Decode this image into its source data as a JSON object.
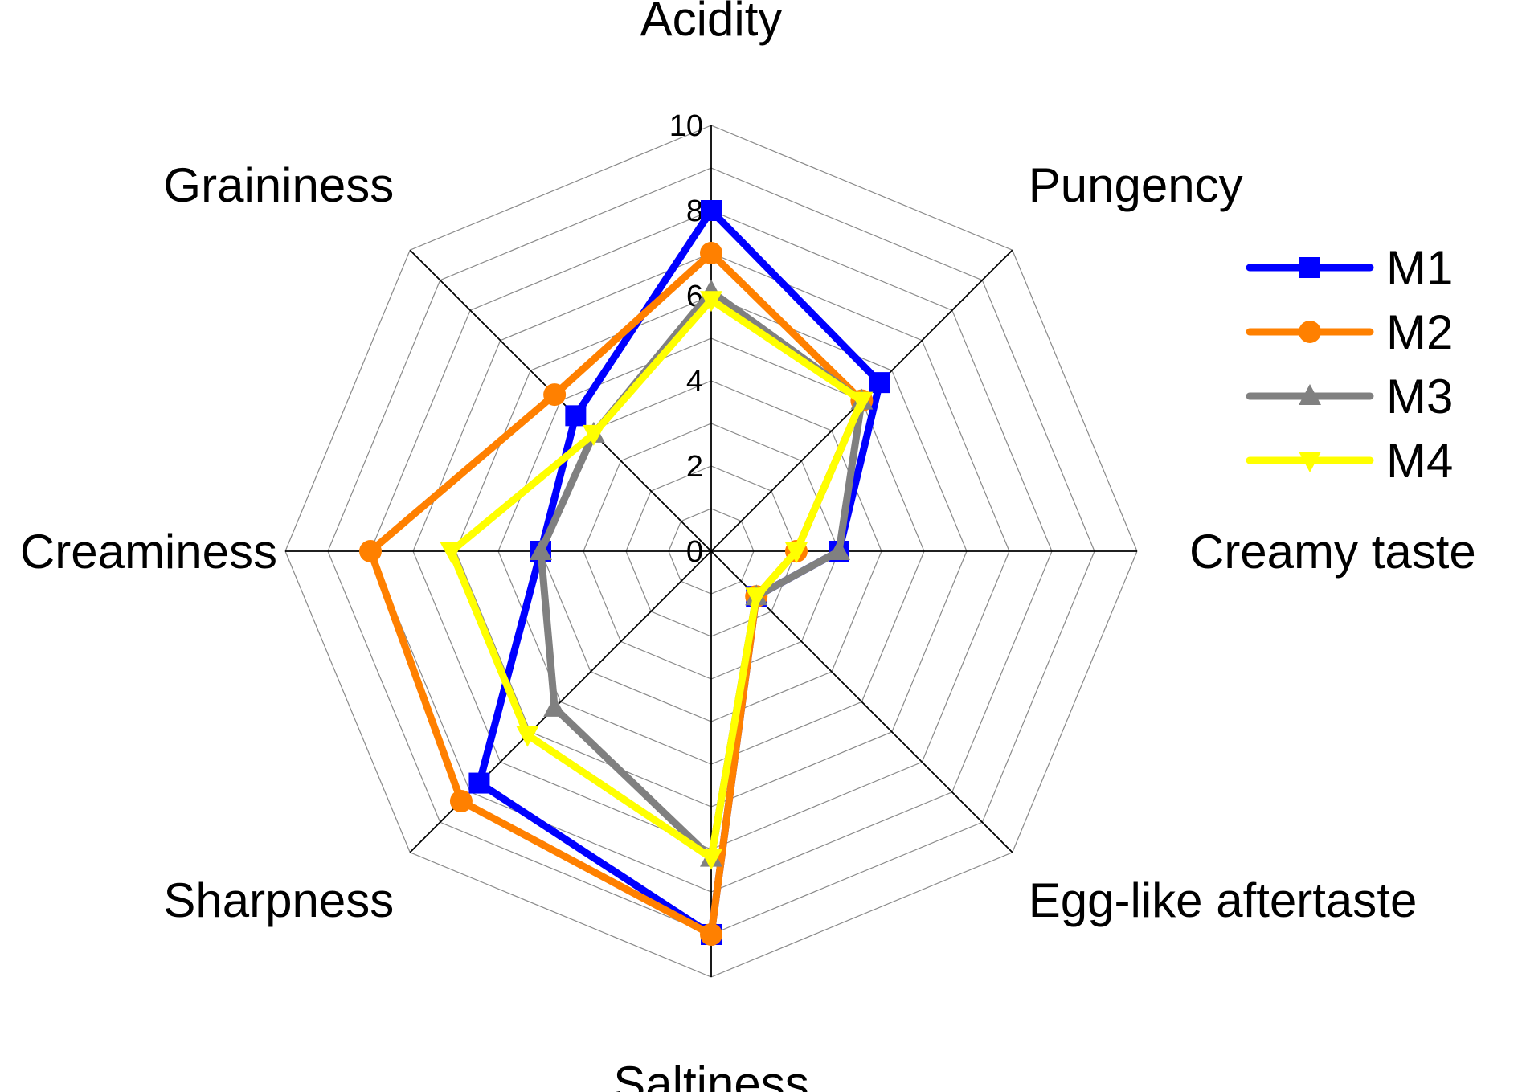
{
  "chart_data": {
    "type": "radar",
    "title": "",
    "axes": [
      "Acidity",
      "Pungency",
      "Creamy taste",
      "Egg-like aftertaste",
      "Saltiness",
      "Sharpness",
      "Creaminess",
      "Graininess"
    ],
    "r_range": [
      0,
      10
    ],
    "r_ticks": [
      "0",
      "2",
      "4",
      "6",
      "8",
      "10"
    ],
    "grid": true,
    "legend_position": "right",
    "series": [
      {
        "name": "M1",
        "color": "#0000FF",
        "marker": "square",
        "values": [
          8.0,
          5.6,
          3.0,
          1.5,
          9.0,
          7.7,
          4.0,
          4.5
        ]
      },
      {
        "name": "M2",
        "color": "#FF8000",
        "marker": "circle",
        "values": [
          7.0,
          5.0,
          2.0,
          1.5,
          9.0,
          8.3,
          8.0,
          5.2
        ]
      },
      {
        "name": "M3",
        "color": "#808080",
        "marker": "triangle-up",
        "values": [
          6.1,
          5.0,
          3.0,
          1.5,
          7.2,
          5.2,
          4.0,
          3.9
        ]
      },
      {
        "name": "M4",
        "color": "#FFFF00",
        "marker": "triangle-down",
        "values": [
          5.9,
          5.0,
          2.0,
          1.5,
          7.2,
          6.1,
          6.1,
          3.9
        ]
      }
    ]
  }
}
